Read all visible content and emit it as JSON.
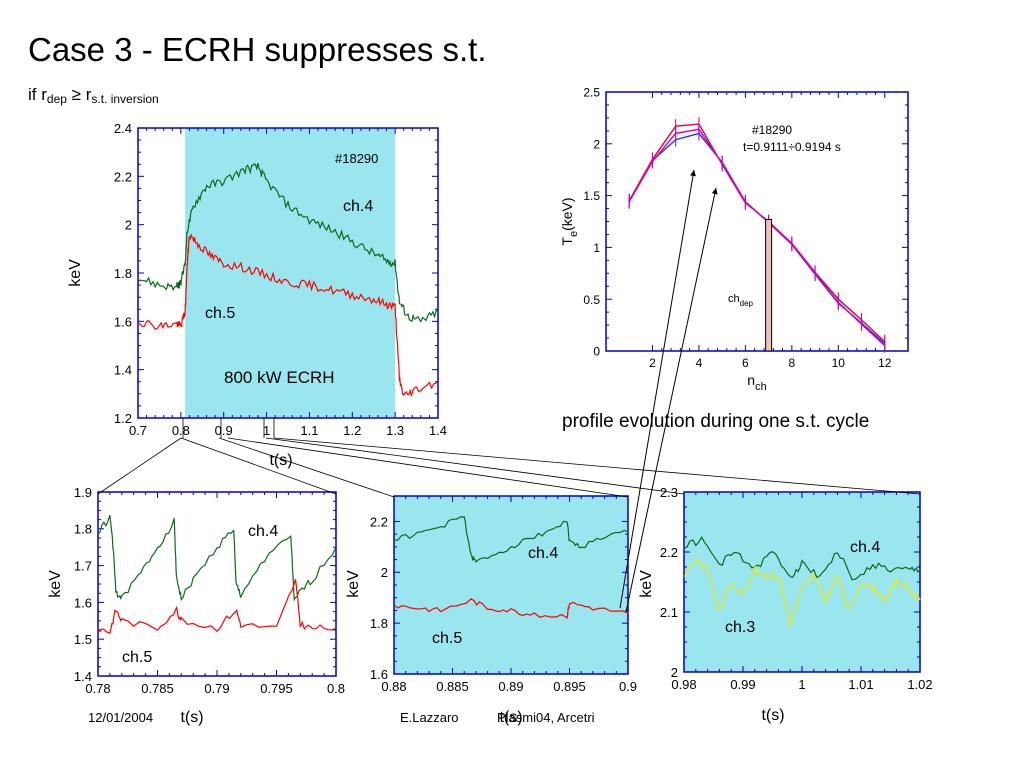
{
  "slide": {
    "title": "Case 3 - ECRH suppresses s.t.",
    "subtitle_prefix": "if r",
    "subtitle_sub1": "dep",
    "subtitle_mid": " ≥ r",
    "subtitle_sub2": "s.t. inversion",
    "caption": "profile evolution during one s.t. cycle",
    "footer_date": "12/01/2004",
    "footer_author": "E.Lazzaro",
    "footer_event": "Plasmi04, Arcetri"
  },
  "colors": {
    "axis": "#0000cc",
    "ecrh_band": "#99e6ee",
    "ch4": "#0b6b1a",
    "ch5": "#ff0000",
    "ch3": "#eeee00",
    "profile_blue": "#2233ff",
    "profile_red": "#ee0022",
    "profile_magenta": "#cc00cc",
    "arrow": "#000000"
  },
  "chart_data": [
    {
      "id": "main",
      "type": "line",
      "xlabel": "t(s)",
      "ylabel": "keV",
      "xlim": [
        0.7,
        1.4
      ],
      "ylim": [
        1.2,
        2.4
      ],
      "xticks": [
        "0.7",
        "0.8",
        "0.9",
        "1",
        "1.1",
        "1.2",
        "1.3",
        "1.4"
      ],
      "yticks": [
        "1.2",
        "1.4",
        "1.6",
        "1.8",
        "2",
        "2.2",
        "2.4"
      ],
      "shaded_region": {
        "x": [
          0.81,
          1.3
        ],
        "label": "800 kW ECRH"
      },
      "annotations": [
        {
          "text": "#18290"
        }
      ],
      "series": [
        {
          "name": "ch.4",
          "color": "#0b6b1a",
          "x": [
            0.7,
            0.75,
            0.79,
            0.8,
            0.81,
            0.815,
            0.83,
            0.86,
            0.9,
            0.95,
            0.98,
            1.0,
            1.05,
            1.1,
            1.15,
            1.2,
            1.25,
            1.28,
            1.3,
            1.31,
            1.33,
            1.36,
            1.4
          ],
          "y": [
            1.78,
            1.75,
            1.74,
            1.76,
            1.84,
            1.98,
            2.08,
            2.16,
            2.18,
            2.23,
            2.24,
            2.18,
            2.08,
            2.02,
            1.98,
            1.93,
            1.88,
            1.85,
            1.84,
            1.68,
            1.62,
            1.6,
            1.64
          ]
        },
        {
          "name": "ch.5",
          "color": "#ff0000",
          "x": [
            0.7,
            0.75,
            0.79,
            0.8,
            0.81,
            0.815,
            0.82,
            0.84,
            0.87,
            0.9,
            0.95,
            1.0,
            1.05,
            1.1,
            1.15,
            1.2,
            1.25,
            1.28,
            1.3,
            1.31,
            1.32,
            1.35,
            1.4
          ],
          "y": [
            1.6,
            1.58,
            1.59,
            1.58,
            1.64,
            1.84,
            1.96,
            1.92,
            1.87,
            1.84,
            1.82,
            1.79,
            1.76,
            1.75,
            1.73,
            1.71,
            1.69,
            1.67,
            1.66,
            1.36,
            1.29,
            1.32,
            1.35
          ]
        }
      ]
    },
    {
      "id": "profile",
      "type": "line",
      "xlabel": "n",
      "xlabel_sub": "ch",
      "ylabel": "T",
      "ylabel_sub": "e",
      "ylabel_suffix": "(keV)",
      "xlim": [
        0,
        13
      ],
      "ylim": [
        0,
        2.5
      ],
      "xticks": [
        "2",
        "4",
        "6",
        "8",
        "10",
        "12"
      ],
      "yticks": [
        "0",
        "0.5",
        "1",
        "1.5",
        "2",
        "2.5"
      ],
      "annotations": [
        {
          "text": "#18290"
        },
        {
          "text": "t=0.9111÷0.9194 s"
        }
      ],
      "marker": {
        "label": "ch",
        "label_sub": "dep",
        "x": 7
      },
      "series": [
        {
          "name": "",
          "color": "#2233ff",
          "x": [
            1,
            2,
            3,
            4,
            5,
            6,
            7,
            8,
            9,
            10,
            11,
            12
          ],
          "y": [
            1.45,
            1.84,
            2.04,
            2.1,
            1.82,
            1.44,
            1.24,
            1.03,
            0.74,
            0.46,
            0.27,
            0.07
          ]
        },
        {
          "name": "",
          "color": "#ee0022",
          "x": [
            1,
            2,
            3,
            4,
            5,
            6,
            7,
            8,
            9,
            10,
            11,
            12
          ],
          "y": [
            1.45,
            1.85,
            2.17,
            2.19,
            1.8,
            1.43,
            1.25,
            1.04,
            0.76,
            0.5,
            0.3,
            0.09
          ]
        },
        {
          "name": "",
          "color": "#cc00cc",
          "x": [
            1,
            2,
            3,
            4,
            5,
            6,
            7,
            8,
            9,
            10,
            11,
            12
          ],
          "y": [
            1.44,
            1.83,
            2.1,
            2.14,
            1.81,
            1.44,
            1.24,
            1.03,
            0.75,
            0.47,
            0.26,
            0.05
          ]
        }
      ]
    },
    {
      "id": "zoom1",
      "type": "line",
      "xlabel": "t(s)",
      "ylabel": "keV",
      "xlim": [
        0.78,
        0.8
      ],
      "ylim": [
        1.4,
        1.9
      ],
      "xticks": [
        "0.78",
        "0.785",
        "0.79",
        "0.795",
        "0.8"
      ],
      "yticks": [
        "1.4",
        "1.5",
        "1.6",
        "1.7",
        "1.8",
        "1.9"
      ],
      "series": [
        {
          "name": "ch.4",
          "color": "#0b6b1a",
          "x": [
            0.78,
            0.781,
            0.7812,
            0.7815,
            0.782,
            0.7836,
            0.785,
            0.7864,
            0.7866,
            0.787,
            0.788,
            0.79,
            0.7914,
            0.7916,
            0.792,
            0.794,
            0.7962,
            0.7965,
            0.797,
            0.798,
            0.8
          ],
          "y": [
            1.79,
            1.83,
            1.78,
            1.63,
            1.61,
            1.68,
            1.75,
            1.82,
            1.67,
            1.61,
            1.66,
            1.75,
            1.8,
            1.65,
            1.62,
            1.72,
            1.78,
            1.6,
            1.63,
            1.66,
            1.75
          ]
        },
        {
          "name": "ch.5",
          "color": "#ff0000",
          "x": [
            0.78,
            0.781,
            0.7815,
            0.782,
            0.785,
            0.7866,
            0.787,
            0.79,
            0.7916,
            0.792,
            0.795,
            0.7966,
            0.797,
            0.798,
            0.8
          ],
          "y": [
            1.53,
            1.52,
            1.58,
            1.55,
            1.53,
            1.58,
            1.55,
            1.53,
            1.58,
            1.54,
            1.53,
            1.66,
            1.54,
            1.53,
            1.53
          ]
        }
      ]
    },
    {
      "id": "zoom2",
      "type": "line",
      "xlabel": "t(s)",
      "ylabel": "keV",
      "xlim": [
        0.88,
        0.9
      ],
      "ylim": [
        1.6,
        2.3
      ],
      "xticks": [
        "0.88",
        "0.885",
        "0.89",
        "0.895",
        "0.9"
      ],
      "yticks": [
        "1.6",
        "1.8",
        "2",
        "2.2"
      ],
      "shaded_region": {
        "x": [
          0.88,
          0.9
        ],
        "label": ""
      },
      "series": [
        {
          "name": "ch.4",
          "color": "#0b6b1a",
          "x": [
            0.88,
            0.882,
            0.884,
            0.886,
            0.8866,
            0.887,
            0.889,
            0.891,
            0.893,
            0.8948,
            0.895,
            0.896,
            0.898,
            0.9
          ],
          "y": [
            2.13,
            2.15,
            2.18,
            2.22,
            2.06,
            2.04,
            2.08,
            2.12,
            2.16,
            2.2,
            2.12,
            2.1,
            2.14,
            2.16
          ]
        },
        {
          "name": "ch.5",
          "color": "#ff0000",
          "x": [
            0.88,
            0.882,
            0.884,
            0.8866,
            0.888,
            0.89,
            0.892,
            0.8948,
            0.895,
            0.897,
            0.9
          ],
          "y": [
            1.87,
            1.86,
            1.85,
            1.89,
            1.86,
            1.85,
            1.83,
            1.83,
            1.88,
            1.86,
            1.84
          ]
        }
      ]
    },
    {
      "id": "zoom3",
      "type": "line",
      "xlabel": "t(s)",
      "ylabel": "keV",
      "xlim": [
        0.98,
        1.02
      ],
      "ylim": [
        2,
        2.3
      ],
      "xticks": [
        "0.98",
        "0.99",
        "1",
        "1.01",
        "1.02"
      ],
      "yticks": [
        "2",
        "2.1",
        "2.2",
        "2.3"
      ],
      "shaded_region": {
        "x": [
          0.98,
          1.02
        ],
        "label": ""
      },
      "series": [
        {
          "name": "ch.4",
          "color": "#0b6b1a",
          "x": [
            0.98,
            0.983,
            0.986,
            0.989,
            0.992,
            0.995,
            0.998,
            1.0,
            1.003,
            1.006,
            1.009,
            1.012,
            1.015,
            1.018,
            1.02
          ],
          "y": [
            2.21,
            2.22,
            2.18,
            2.2,
            2.17,
            2.2,
            2.16,
            2.18,
            2.16,
            2.2,
            2.15,
            2.18,
            2.17,
            2.17,
            2.17
          ]
        },
        {
          "name": "ch.3",
          "color": "#eeee00",
          "x": [
            0.98,
            0.982,
            0.984,
            0.986,
            0.988,
            0.99,
            0.992,
            0.994,
            0.996,
            0.998,
            1.0,
            1.002,
            1.004,
            1.006,
            1.008,
            1.01,
            1.012,
            1.014,
            1.016,
            1.018,
            1.02
          ],
          "y": [
            2.16,
            2.19,
            2.17,
            2.1,
            2.15,
            2.13,
            2.17,
            2.16,
            2.16,
            2.08,
            2.14,
            2.16,
            2.12,
            2.16,
            2.1,
            2.15,
            2.14,
            2.12,
            2.15,
            2.14,
            2.12
          ]
        }
      ]
    }
  ]
}
